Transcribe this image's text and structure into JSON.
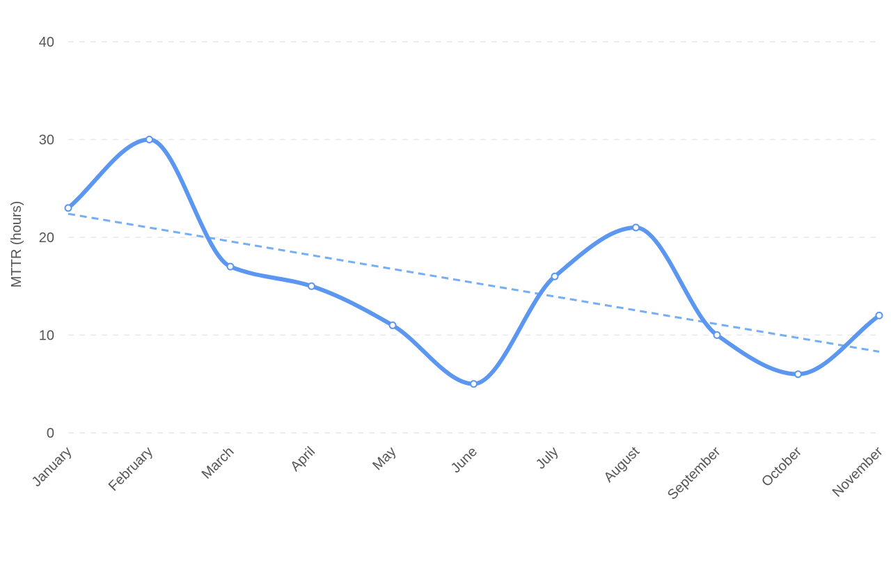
{
  "chart_data": {
    "type": "line",
    "title": "",
    "xlabel": "",
    "ylabel": "MTTR (hours)",
    "categories": [
      "January",
      "February",
      "March",
      "April",
      "May",
      "June",
      "July",
      "August",
      "September",
      "October",
      "November"
    ],
    "series": [
      {
        "values": [
          23,
          30,
          17,
          15,
          11,
          5,
          16,
          21,
          10,
          6,
          12
        ],
        "color": "#5b96f0",
        "smooth": true
      }
    ],
    "trendline": {
      "start": 22.4,
      "end": 8.3,
      "color": "#74aef5",
      "style": "dashed"
    },
    "ylim": [
      0,
      40
    ],
    "yticks": [
      0,
      10,
      20,
      30,
      40
    ],
    "grid": true,
    "legend": "none"
  }
}
